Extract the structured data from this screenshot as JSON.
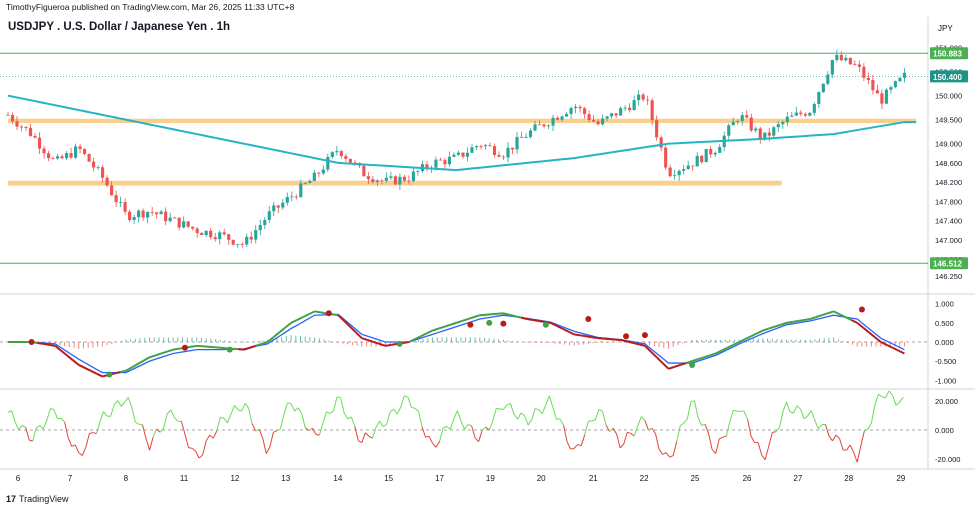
{
  "header": {
    "publish_line": "TimothyFigueroa published on TradingView.com, Mar 26, 2025 11:33 UTC+8",
    "title": "USDJPY . U.S. Dollar / Japanese Yen . 1h",
    "currency": "JPY"
  },
  "footer": {
    "logo_mark": "17",
    "logo_text": "TradingView"
  },
  "colors": {
    "bull": "#26a69a",
    "bear": "#ef5350",
    "ma": "#26b4c4",
    "zone": "#f9c77a",
    "hline": "#4caf50",
    "macd": "#2962ff",
    "signal_up": "#43a047",
    "signal_down": "#b71c1c",
    "osc_up": "#66dd55",
    "osc_down": "#e0443a"
  },
  "chart_data": [
    {
      "type": "candlestick",
      "symbol": "USDJPY",
      "timeframe": "1h",
      "x_ticks": [
        "6",
        "7",
        "8",
        "11",
        "12",
        "13",
        "14",
        "15",
        "17",
        "19",
        "20",
        "21",
        "22",
        "25",
        "26",
        "27",
        "28",
        "29"
      ],
      "y_ticks": [
        151.0,
        150.5,
        150.0,
        149.5,
        149.0,
        148.6,
        148.2,
        147.8,
        147.4,
        147.0,
        146.6,
        146.25
      ],
      "y_tick_labels": [
        "151.000",
        "150.500",
        "150.000",
        "149.500",
        "149.000",
        "148.600",
        "148.200",
        "147.800",
        "147.400",
        "147.000",
        "146.600",
        "146.250"
      ],
      "ylim": [
        146.1,
        151.2
      ],
      "price_labels": [
        {
          "value": 150.883,
          "label": "150.883"
        },
        {
          "value": 150.4,
          "label": "150.400"
        },
        {
          "value": 146.512,
          "label": "146.512"
        }
      ],
      "close_anchors": [
        [
          0,
          149.6
        ],
        [
          1,
          149.2
        ],
        [
          2,
          148.6
        ],
        [
          3,
          148.9
        ],
        [
          4,
          148.3
        ],
        [
          5,
          147.5
        ],
        [
          6,
          147.6
        ],
        [
          7,
          147.4
        ],
        [
          8,
          147.2
        ],
        [
          9,
          147.1
        ],
        [
          10,
          146.9
        ],
        [
          11,
          147.5
        ],
        [
          12,
          147.9
        ],
        [
          13,
          148.3
        ],
        [
          14,
          148.9
        ],
        [
          15,
          148.4
        ],
        [
          16,
          148.2
        ],
        [
          17,
          148.3
        ],
        [
          18,
          148.6
        ],
        [
          19,
          148.7
        ],
        [
          20,
          149.0
        ],
        [
          21,
          148.8
        ],
        [
          22,
          149.2
        ],
        [
          23,
          149.5
        ],
        [
          24,
          149.8
        ],
        [
          25,
          149.4
        ],
        [
          26,
          149.7
        ],
        [
          27,
          150.0
        ],
        [
          28,
          148.4
        ],
        [
          29,
          148.6
        ],
        [
          30,
          148.9
        ],
        [
          31,
          149.6
        ],
        [
          32,
          149.1
        ],
        [
          33,
          149.5
        ],
        [
          34,
          149.7
        ],
        [
          35,
          150.8
        ],
        [
          36,
          150.6
        ],
        [
          37,
          149.9
        ],
        [
          38,
          150.4
        ]
      ],
      "candle_count": 200,
      "moving_average": {
        "points": [
          [
            0,
            150.0
          ],
          [
            5,
            149.5
          ],
          [
            10,
            149.0
          ],
          [
            14,
            148.6
          ],
          [
            19,
            148.45
          ],
          [
            24,
            148.7
          ],
          [
            28,
            149.0
          ],
          [
            32,
            149.1
          ],
          [
            35,
            149.2
          ],
          [
            38,
            149.45
          ]
        ]
      },
      "zones": [
        {
          "from_x": 0,
          "to_x": 38.5,
          "low": 149.43,
          "high": 149.52
        },
        {
          "from_x": 0,
          "to_x": 32.8,
          "low": 148.13,
          "high": 148.23
        }
      ],
      "lines": [
        {
          "value": 150.883
        },
        {
          "value": 146.512
        }
      ]
    },
    {
      "type": "line",
      "panel": "momentum",
      "y_ticks": [
        1.0,
        0.5,
        0.0,
        -0.5,
        -1.0
      ],
      "y_tick_labels": [
        "1.000",
        "0.500",
        "0.000",
        "-0.500",
        "-1.000"
      ],
      "ylim": [
        -1.15,
        1.15
      ],
      "series": [
        {
          "values": [
            [
              0,
              0.0
            ],
            [
              1,
              0.0
            ],
            [
              2,
              -0.1
            ],
            [
              3,
              -0.6
            ],
            [
              4,
              -0.9
            ],
            [
              5,
              -0.75
            ],
            [
              6,
              -0.4
            ],
            [
              7,
              -0.2
            ],
            [
              8,
              -0.1
            ],
            [
              9,
              -0.15
            ],
            [
              10,
              -0.2
            ],
            [
              11,
              0.0
            ],
            [
              12,
              0.5
            ],
            [
              13,
              0.8
            ],
            [
              14,
              0.7
            ],
            [
              15,
              0.1
            ],
            [
              16,
              -0.1
            ],
            [
              17,
              0.0
            ],
            [
              18,
              0.3
            ],
            [
              19,
              0.5
            ],
            [
              20,
              0.7
            ],
            [
              21,
              0.75
            ],
            [
              22,
              0.6
            ],
            [
              23,
              0.5
            ],
            [
              24,
              0.2
            ],
            [
              25,
              0.1
            ],
            [
              26,
              0.05
            ],
            [
              27,
              -0.1
            ],
            [
              28,
              -0.7
            ],
            [
              29,
              -0.5
            ],
            [
              30,
              -0.3
            ],
            [
              31,
              0.0
            ],
            [
              32,
              0.3
            ],
            [
              33,
              0.5
            ],
            [
              34,
              0.6
            ],
            [
              35,
              0.8
            ],
            [
              36,
              0.5
            ],
            [
              37,
              0.0
            ],
            [
              38,
              -0.3
            ]
          ]
        },
        {
          "values": [
            [
              0,
              0.0
            ],
            [
              1,
              0.0
            ],
            [
              2,
              -0.05
            ],
            [
              3,
              -0.45
            ],
            [
              4,
              -0.8
            ],
            [
              5,
              -0.8
            ],
            [
              6,
              -0.5
            ],
            [
              7,
              -0.3
            ],
            [
              8,
              -0.2
            ],
            [
              9,
              -0.2
            ],
            [
              10,
              -0.18
            ],
            [
              11,
              -0.05
            ],
            [
              12,
              0.35
            ],
            [
              13,
              0.7
            ],
            [
              14,
              0.72
            ],
            [
              15,
              0.2
            ],
            [
              16,
              0.0
            ],
            [
              17,
              0.0
            ],
            [
              18,
              0.2
            ],
            [
              19,
              0.4
            ],
            [
              20,
              0.6
            ],
            [
              21,
              0.7
            ],
            [
              22,
              0.62
            ],
            [
              23,
              0.52
            ],
            [
              24,
              0.28
            ],
            [
              25,
              0.12
            ],
            [
              26,
              0.06
            ],
            [
              27,
              -0.05
            ],
            [
              28,
              -0.55
            ],
            [
              29,
              -0.55
            ],
            [
              30,
              -0.35
            ],
            [
              31,
              -0.05
            ],
            [
              32,
              0.22
            ],
            [
              33,
              0.45
            ],
            [
              34,
              0.55
            ],
            [
              35,
              0.7
            ],
            [
              36,
              0.6
            ],
            [
              37,
              0.1
            ],
            [
              38,
              -0.2
            ]
          ]
        }
      ],
      "cross_dots": [
        {
          "x": 1.0,
          "y": 0.0,
          "dir": "down"
        },
        {
          "x": 4.3,
          "y": -0.85,
          "dir": "up"
        },
        {
          "x": 7.5,
          "y": -0.15,
          "dir": "down"
        },
        {
          "x": 9.4,
          "y": -0.2,
          "dir": "up"
        },
        {
          "x": 13.6,
          "y": 0.75,
          "dir": "down"
        },
        {
          "x": 16.6,
          "y": -0.05,
          "dir": "up"
        },
        {
          "x": 19.6,
          "y": 0.45,
          "dir": "down"
        },
        {
          "x": 20.4,
          "y": 0.5,
          "dir": "up"
        },
        {
          "x": 21.0,
          "y": 0.48,
          "dir": "down"
        },
        {
          "x": 22.8,
          "y": 0.45,
          "dir": "up"
        },
        {
          "x": 24.6,
          "y": 0.6,
          "dir": "down"
        },
        {
          "x": 26.2,
          "y": 0.15,
          "dir": "down"
        },
        {
          "x": 27.0,
          "y": 0.18,
          "dir": "down"
        },
        {
          "x": 29.0,
          "y": -0.6,
          "dir": "up"
        },
        {
          "x": 36.2,
          "y": 0.85,
          "dir": "down"
        }
      ]
    },
    {
      "type": "line",
      "panel": "oscillator",
      "y_ticks": [
        20.0,
        0.0,
        -20.0
      ],
      "y_tick_labels": [
        "20.000",
        "0.000",
        "-20.000"
      ],
      "ylim": [
        -26,
        26
      ],
      "series": [
        {
          "values": [
            [
              0,
              12
            ],
            [
              1,
              -6
            ],
            [
              2,
              15
            ],
            [
              3,
              -18
            ],
            [
              4,
              8
            ],
            [
              5,
              22
            ],
            [
              6,
              -10
            ],
            [
              7,
              14
            ],
            [
              8,
              -20
            ],
            [
              9,
              5
            ],
            [
              10,
              18
            ],
            [
              11,
              -14
            ],
            [
              12,
              20
            ],
            [
              13,
              -5
            ],
            [
              14,
              22
            ],
            [
              15,
              -8
            ],
            [
              16,
              6
            ],
            [
              17,
              23
            ],
            [
              18,
              -12
            ],
            [
              19,
              10
            ],
            [
              20,
              -6
            ],
            [
              21,
              18
            ],
            [
              22,
              6
            ],
            [
              23,
              20
            ],
            [
              24,
              -16
            ],
            [
              25,
              14
            ],
            [
              26,
              -10
            ],
            [
              27,
              8
            ],
            [
              28,
              -22
            ],
            [
              29,
              20
            ],
            [
              30,
              -15
            ],
            [
              31,
              18
            ],
            [
              32,
              -20
            ],
            [
              33,
              16
            ],
            [
              34,
              10
            ],
            [
              35,
              -5
            ],
            [
              36,
              -18
            ],
            [
              37,
              26
            ],
            [
              38,
              18
            ]
          ]
        }
      ]
    }
  ]
}
